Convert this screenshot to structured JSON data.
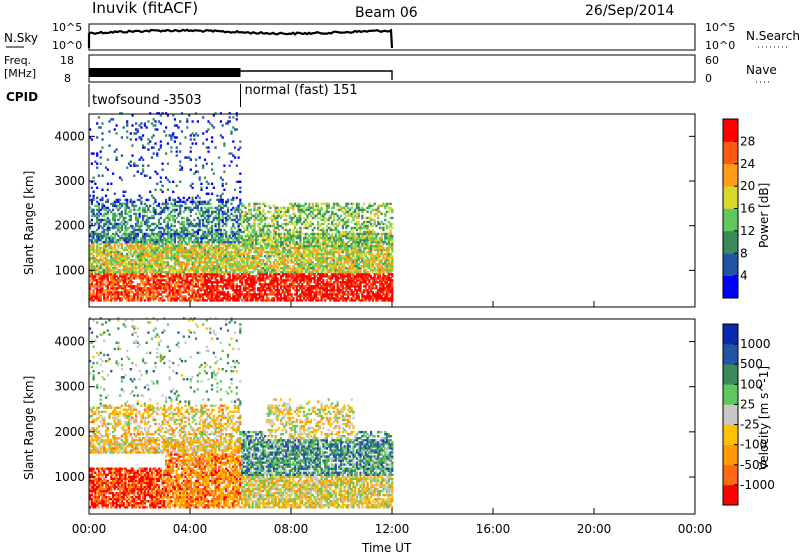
{
  "header": {
    "station": "Inuvik (fitACF)",
    "beam": "Beam 06",
    "date": "26/Sep/2014"
  },
  "top_panels": {
    "nsky_label": "N.Sky",
    "nsky_ticks": [
      "10^5",
      "10^0"
    ],
    "nsearch_label": "N.Search",
    "nsearch_ticks": [
      "10^5",
      "10^0"
    ],
    "freq_label_1": "Freq.",
    "freq_label_2": "[MHz]",
    "freq_ticks": [
      "18",
      "8"
    ],
    "nave_label": "Nave",
    "nave_ticks": [
      "60",
      "0"
    ],
    "cpid_label": "CPID",
    "cpid_modes": [
      {
        "name": "twofsound -3503",
        "start_hour": 0,
        "end_hour": 6
      },
      {
        "name": "normal (fast) 151",
        "start_hour": 6,
        "end_hour": 12
      }
    ]
  },
  "colors": {
    "power_scale": [
      "#0000ff",
      "#2255a8",
      "#3a8a5a",
      "#5fc85a",
      "#d8d82a",
      "#ff9a1a",
      "#ff5a14",
      "#ff0000"
    ],
    "velocity_scale": [
      "#ff0000",
      "#ff6a10",
      "#ff9a00",
      "#ffc000",
      "#c8c8c4",
      "#5fc85a",
      "#3a8a5a",
      "#2255a8",
      "#0a2ab0"
    ]
  },
  "chart_data": [
    {
      "type": "heatmap",
      "panel": "power",
      "title": "",
      "ylabel": "Slant Range [km]",
      "xlabel": "",
      "x_ticks": [
        "00:00",
        "04:00",
        "08:00",
        "12:00",
        "16:00",
        "20:00",
        "00:00"
      ],
      "y_ticks": [
        "1000",
        "2000",
        "3000",
        "4000"
      ],
      "xlim": [
        0,
        24
      ],
      "ylim": [
        180,
        4500
      ],
      "data_extent_hours": [
        0,
        12
      ],
      "colorbar_label": "Power [dB]",
      "colorbar_ticks": [
        "4",
        "8",
        "12",
        "16",
        "20",
        "24",
        "28"
      ],
      "echo_regions": [
        {
          "t0": 0.0,
          "t1": 12.0,
          "r0": 300,
          "r1": 1100,
          "level": 0.85
        },
        {
          "t0": 4.5,
          "t1": 12.0,
          "r0": 300,
          "r1": 900,
          "level": 0.95
        },
        {
          "t0": 0.0,
          "t1": 12.0,
          "r0": 900,
          "r1": 1700,
          "level": 0.55
        },
        {
          "t0": 0.0,
          "t1": 6.0,
          "r0": 1600,
          "r1": 2500,
          "level": 0.3
        },
        {
          "t0": 6.0,
          "t1": 12.0,
          "r0": 1500,
          "r1": 2500,
          "level": 0.45
        },
        {
          "t0": 0.0,
          "t1": 6.0,
          "r0": 2500,
          "r1": 4500,
          "level": 0.15
        }
      ]
    },
    {
      "type": "heatmap",
      "panel": "velocity",
      "title": "",
      "ylabel": "Slant Range [km]",
      "xlabel": "Time UT",
      "x_ticks": [
        "00:00",
        "04:00",
        "08:00",
        "12:00",
        "16:00",
        "20:00",
        "00:00"
      ],
      "y_ticks": [
        "1000",
        "2000",
        "3000",
        "4000"
      ],
      "xlim": [
        0,
        24
      ],
      "ylim": [
        180,
        4500
      ],
      "data_extent_hours": [
        0,
        12
      ],
      "colorbar_label": "Velocity [m s^-1]",
      "colorbar_ticks": [
        "1000",
        "500",
        "100",
        "25",
        "-25",
        "-100",
        "-500",
        "-1000"
      ],
      "echo_regions": [
        {
          "t0": 0.0,
          "t1": 3.0,
          "r0": 300,
          "r1": 1200,
          "level": 0.1
        },
        {
          "t0": 3.0,
          "t1": 6.0,
          "r0": 300,
          "r1": 1500,
          "level": 0.25
        },
        {
          "t0": 6.0,
          "t1": 12.0,
          "r0": 300,
          "r1": 1200,
          "level": 0.45
        },
        {
          "t0": 6.0,
          "t1": 12.0,
          "r0": 1000,
          "r1": 2000,
          "level": 0.7
        },
        {
          "t0": 0.0,
          "t1": 6.0,
          "r0": 1500,
          "r1": 2600,
          "level": 0.4
        },
        {
          "t0": 7.0,
          "t1": 10.5,
          "r0": 1800,
          "r1": 2700,
          "level": 0.45
        },
        {
          "t0": 0.0,
          "t1": 6.0,
          "r0": 2600,
          "r1": 4500,
          "level": 0.6
        }
      ]
    }
  ]
}
